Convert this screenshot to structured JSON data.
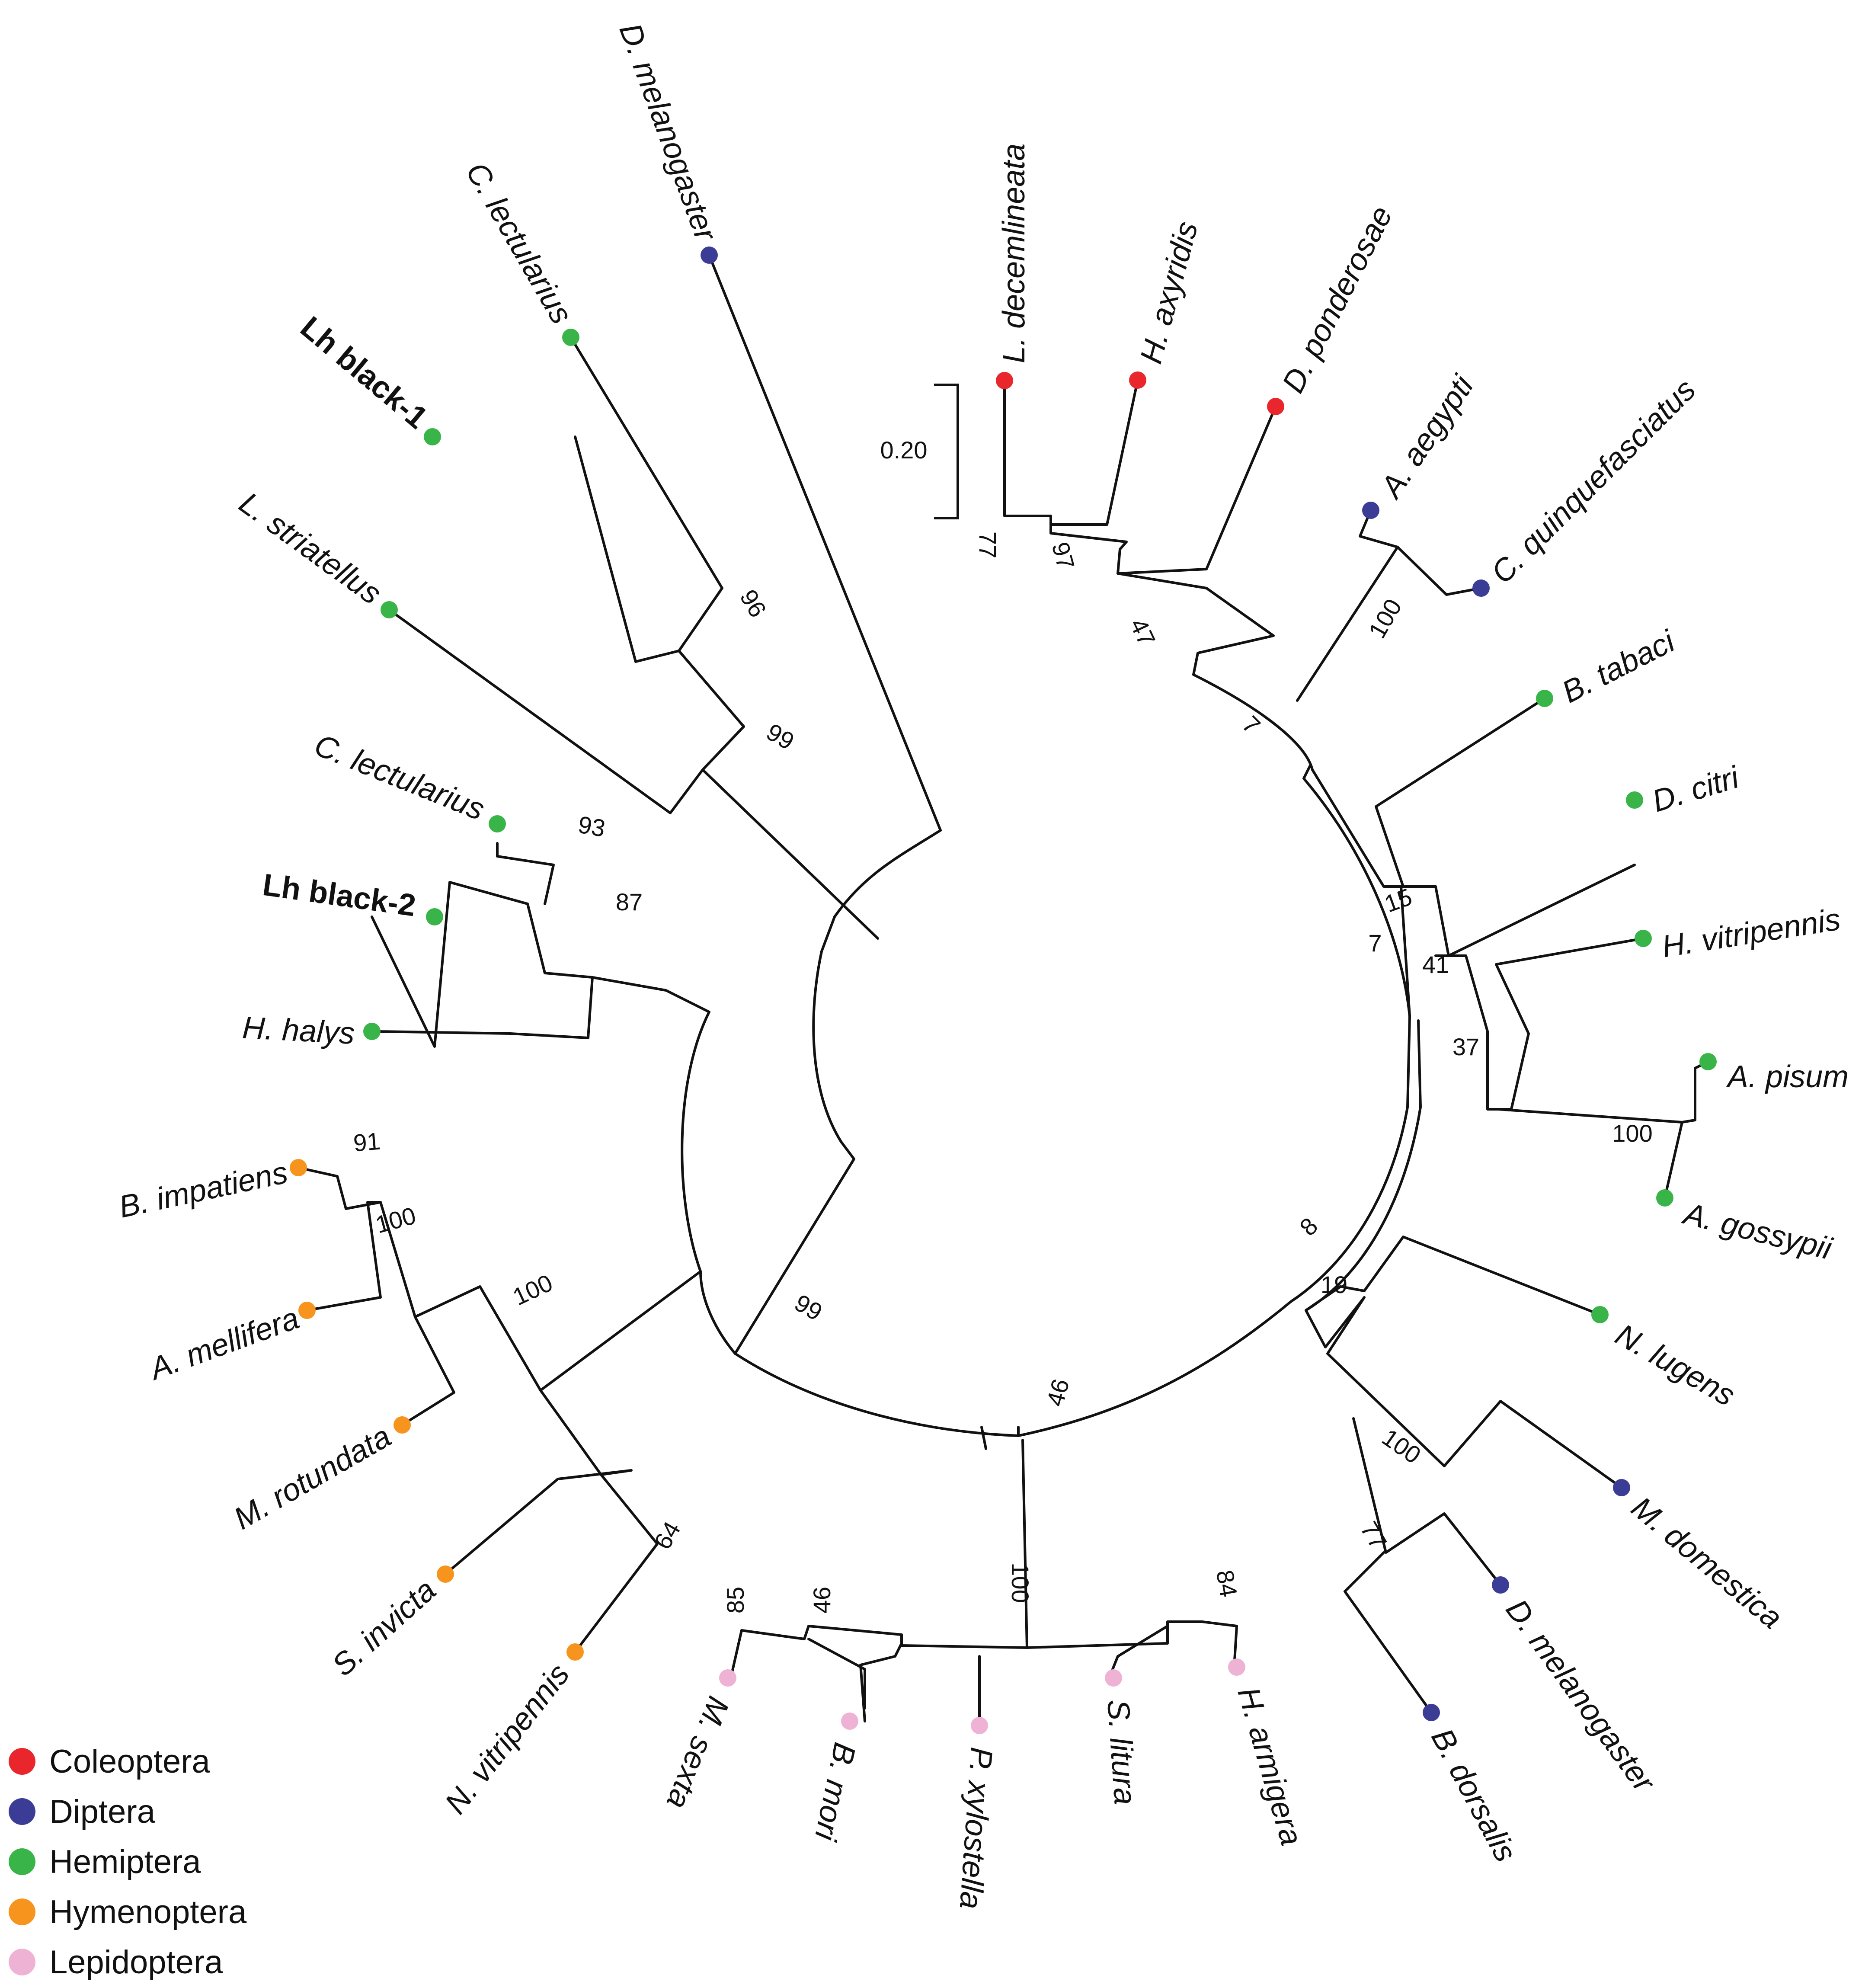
{
  "order_colors": {
    "Coleoptera": "#e8262b",
    "Diptera": "#3b3c96",
    "Hemiptera": "#38b448",
    "Hymenoptera": "#f7941d",
    "Lepidoptera": "#eeb2d4"
  },
  "legend": [
    {
      "label": "Coleoptera",
      "order": "Coleoptera"
    },
    {
      "label": "Diptera",
      "order": "Diptera"
    },
    {
      "label": "Hemiptera",
      "order": "Hemiptera"
    },
    {
      "label": "Hymenoptera",
      "order": "Hymenoptera"
    },
    {
      "label": "Lepidoptera",
      "order": "Lepidoptera"
    }
  ],
  "scale_bar": {
    "label": "0.20"
  },
  "leaves": [
    {
      "id": "ldec",
      "label": "L. decemlineata",
      "order": "Coleoptera"
    },
    {
      "id": "haxy",
      "label": "H. axyridis",
      "order": "Coleoptera"
    },
    {
      "id": "dpon",
      "label": "D. ponderosae",
      "order": "Coleoptera"
    },
    {
      "id": "aaeg",
      "label": "A. aegypti",
      "order": "Diptera"
    },
    {
      "id": "cqui",
      "label": "C. quinquefasciatus",
      "order": "Diptera"
    },
    {
      "id": "btab",
      "label": "B. tabaci",
      "order": "Hemiptera"
    },
    {
      "id": "dcit",
      "label": "D. citri",
      "order": "Hemiptera"
    },
    {
      "id": "hvit",
      "label": "H. vitripennis",
      "order": "Hemiptera"
    },
    {
      "id": "apis",
      "label": "A. pisum",
      "order": "Hemiptera"
    },
    {
      "id": "agos",
      "label": "A. gossypii",
      "order": "Hemiptera"
    },
    {
      "id": "nlug",
      "label": "N. lugens",
      "order": "Hemiptera"
    },
    {
      "id": "mdom",
      "label": "M. domestica",
      "order": "Diptera"
    },
    {
      "id": "dmel2",
      "label": "D. melanogaster",
      "order": "Diptera"
    },
    {
      "id": "bdor",
      "label": "B. dorsalis",
      "order": "Diptera"
    },
    {
      "id": "harm",
      "label": "H. armigera",
      "order": "Lepidoptera"
    },
    {
      "id": "slit",
      "label": "S. litura",
      "order": "Lepidoptera"
    },
    {
      "id": "pxyl",
      "label": "P. xylostella",
      "order": "Lepidoptera"
    },
    {
      "id": "bmor",
      "label": "B. mori",
      "order": "Lepidoptera"
    },
    {
      "id": "msex",
      "label": "M. sexta",
      "order": "Lepidoptera"
    },
    {
      "id": "nvit",
      "label": "N. vitripennis",
      "order": "Hymenoptera"
    },
    {
      "id": "sinv",
      "label": "S. invicta",
      "order": "Hymenoptera"
    },
    {
      "id": "mrot",
      "label": "M. rotundata",
      "order": "Hymenoptera"
    },
    {
      "id": "amel",
      "label": "A. mellifera",
      "order": "Hymenoptera"
    },
    {
      "id": "bimp",
      "label": "B. impatiens",
      "order": "Hymenoptera"
    },
    {
      "id": "hhal",
      "label": "H. halys",
      "order": "Hemiptera"
    },
    {
      "id": "lhb2",
      "label": "Lh black-2",
      "order": "Hemiptera",
      "highlight": true
    },
    {
      "id": "clec2",
      "label": "C. lectularius",
      "order": "Hemiptera"
    },
    {
      "id": "lstr",
      "label": "L. striatellus",
      "order": "Hemiptera"
    },
    {
      "id": "lhb1",
      "label": "Lh black-1",
      "order": "Hemiptera",
      "highlight": true
    },
    {
      "id": "clec1",
      "label": "C. lectularius",
      "order": "Hemiptera"
    },
    {
      "id": "dmel1",
      "label": "D. melanogaster",
      "order": "Diptera",
      "label_color": "#555555"
    }
  ],
  "support_values": [
    "77",
    "97",
    "47",
    "100",
    "7",
    "15",
    "7",
    "41",
    "37",
    "100",
    "8",
    "19",
    "100",
    "77",
    "46",
    "100",
    "84",
    "46",
    "85",
    "99",
    "100",
    "100",
    "91",
    "64",
    "87",
    "93",
    "99",
    "96"
  ]
}
